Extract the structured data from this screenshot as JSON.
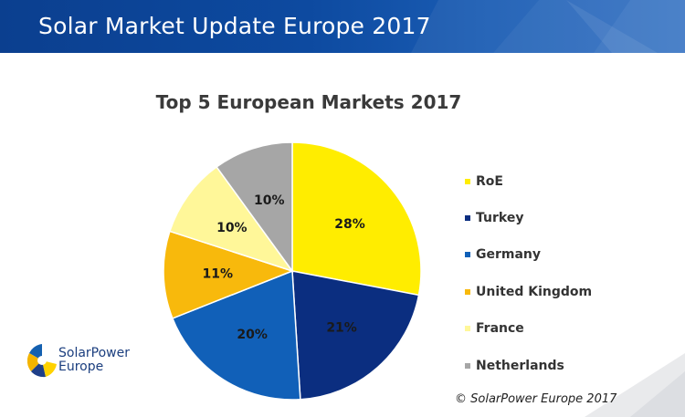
{
  "header": {
    "title": "Solar Market Update Europe 2017"
  },
  "chart_data": {
    "type": "pie",
    "title": "Top 5 European Markets 2017",
    "categories": [
      "RoE",
      "Turkey",
      "Germany",
      "United Kingdom",
      "France",
      "Netherlands"
    ],
    "values": [
      28,
      21,
      20,
      11,
      10,
      10
    ],
    "value_labels": [
      "28%",
      "21%",
      "20%",
      "11%",
      "10%",
      "10%"
    ],
    "colors": [
      "#ffed00",
      "#0b2e80",
      "#1160b8",
      "#f8b90c",
      "#fff799",
      "#a6a6a6"
    ],
    "legend_position": "right"
  },
  "logo": {
    "line1": "SolarPower",
    "line2": "Europe"
  },
  "footer": {
    "copyright": "© SolarPower Europe 2017"
  },
  "icons": {
    "logo": "solarpower-europe-logo-icon"
  }
}
